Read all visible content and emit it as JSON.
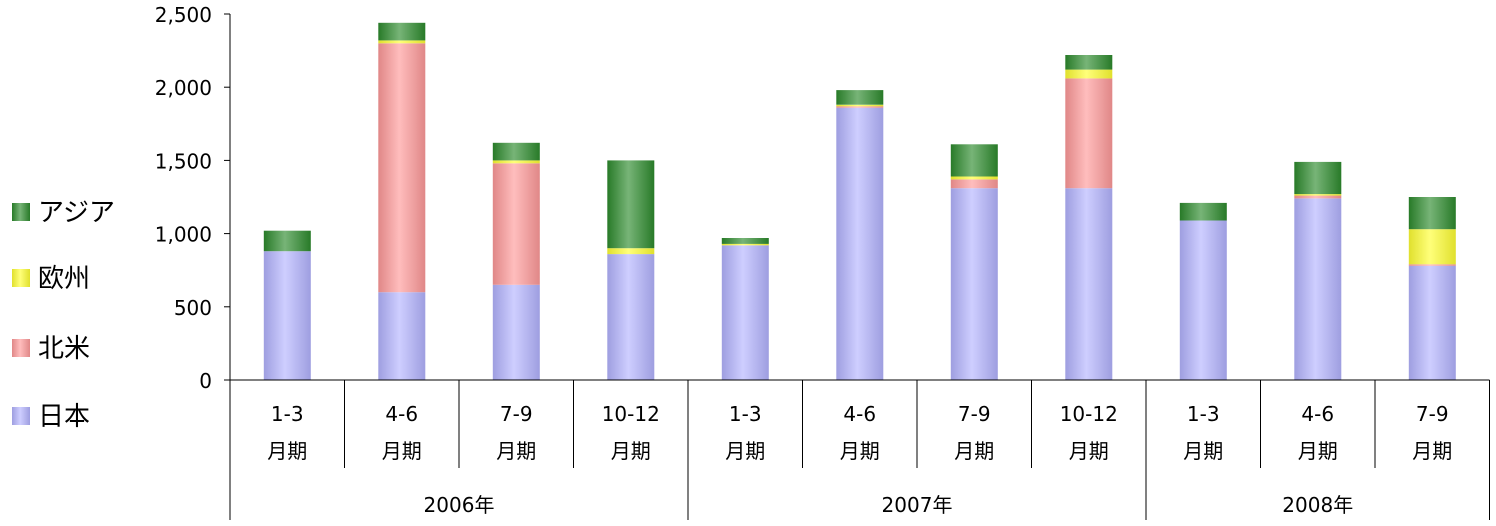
{
  "chart_data": {
    "type": "bar",
    "stacked": true,
    "title": "",
    "xlabel": "",
    "ylabel": "",
    "ylim": [
      0,
      2500
    ],
    "yticks": [
      "0",
      "500",
      "1,000",
      "1,500",
      "2,000",
      "2,500"
    ],
    "categories": [
      {
        "line1": "1-3",
        "line2": "月期"
      },
      {
        "line1": "4-6",
        "line2": "月期"
      },
      {
        "line1": "7-9",
        "line2": "月期"
      },
      {
        "line1": "10-12",
        "line2": "月期"
      },
      {
        "line1": "1-3",
        "line2": "月期"
      },
      {
        "line1": "4-6",
        "line2": "月期"
      },
      {
        "line1": "7-9",
        "line2": "月期"
      },
      {
        "line1": "10-12",
        "line2": "月期"
      },
      {
        "line1": "1-3",
        "line2": "月期"
      },
      {
        "line1": "4-6",
        "line2": "月期"
      },
      {
        "line1": "7-9",
        "line2": "月期"
      }
    ],
    "groups": [
      {
        "label": "2006年",
        "count": 4
      },
      {
        "label": "2007年",
        "count": 4
      },
      {
        "label": "2008年",
        "count": 3
      }
    ],
    "series": [
      {
        "name": "日本",
        "color": "#b3b3ff",
        "values": [
          880,
          600,
          650,
          860,
          920,
          1860,
          1310,
          1310,
          1090,
          1240,
          780
        ]
      },
      {
        "name": "北米",
        "color": "#ff9999",
        "values": [
          0,
          1700,
          830,
          0,
          0,
          10,
          60,
          750,
          0,
          20,
          10
        ]
      },
      {
        "name": "欧州",
        "color": "#ffff33",
        "values": [
          0,
          20,
          20,
          40,
          10,
          10,
          20,
          60,
          0,
          10,
          240
        ]
      },
      {
        "name": "アジア",
        "color": "#2e8b2e",
        "values": [
          140,
          120,
          120,
          600,
          40,
          100,
          220,
          100,
          120,
          220,
          220
        ]
      }
    ],
    "legend_order": [
      "アジア",
      "欧州",
      "北米",
      "日本"
    ],
    "legend_position": "left",
    "grid": false
  }
}
